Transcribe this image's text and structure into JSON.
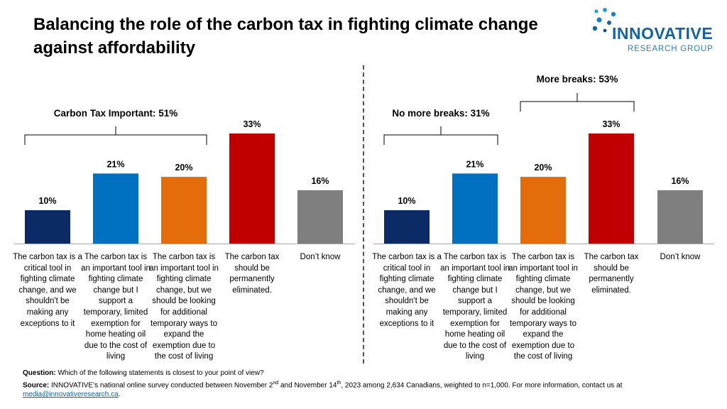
{
  "title": "Balancing the role of the carbon tax in fighting climate change against affordability",
  "logo": {
    "name": "INNOVATIVE",
    "sub": "RESEARCH GROUP"
  },
  "colors": {
    "navy": "#0b2a66",
    "blue": "#0070c0",
    "orange": "#e46c0a",
    "red": "#c00000",
    "grey": "#7f7f7f"
  },
  "chart_data": [
    {
      "type": "bar",
      "categories": [
        "The carbon tax is a critical tool in fighting climate change, and we shouldn't be making any exceptions to it",
        "The carbon tax is an important tool in fighting climate change but I support a temporary, limited exemption for home heating oil due to the cost of living",
        "The carbon tax is an important tool in fighting climate change, but we should be looking for additional temporary ways to expand the exemption due to the cost of living",
        "The carbon tax should be permanently eliminated.",
        "Don’t know"
      ],
      "values": [
        10,
        21,
        20,
        33,
        16
      ],
      "data_labels": [
        "10%",
        "21%",
        "20%",
        "33%",
        "16%"
      ],
      "bracket_labels": [
        "Carbon Tax Important: 51%"
      ],
      "ylim": [
        0,
        35
      ]
    },
    {
      "type": "bar",
      "categories": [
        "The carbon tax is a critical tool in fighting climate change, and we shouldn't be making any exceptions to it",
        "The carbon tax is an important tool in fighting climate change but I support a temporary, limited exemption for home heating oil due to the cost of living",
        "The carbon tax is an important tool in fighting climate change, but we should be looking for additional temporary ways to expand the exemption due to the cost of living",
        "The carbon tax should be permanently eliminated.",
        "Don’t know"
      ],
      "values": [
        10,
        21,
        20,
        33,
        16
      ],
      "data_labels": [
        "10%",
        "21%",
        "20%",
        "33%",
        "16%"
      ],
      "bracket_labels": [
        "No more breaks: 31%",
        "More breaks: 53%"
      ],
      "ylim": [
        0,
        35
      ]
    }
  ],
  "footer": {
    "question_label": "Question:",
    "question_text": " Which of the following statements is closest to your point of view?",
    "source_label": "Source:",
    "source_text_1": " INNOVATIVE’s national online survey conducted between November 2",
    "sup_1": "nd",
    "source_text_2": " and November 14",
    "sup_2": "th",
    "source_text_3": ", 2023 among 2,634 Canadians, weighted to n=1,000. For more information, contact us at",
    "email": "media@innovativeresearch.ca",
    "end": "."
  }
}
